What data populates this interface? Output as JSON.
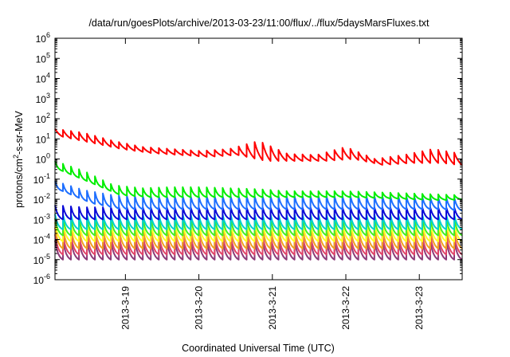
{
  "chart_data": {
    "type": "line",
    "title": "/data/run/goesPlots/archive/2013-03-23/11:00/flux/../flux/5daysMarsFluxes.txt",
    "xlabel": "Coordinated Universal Time (UTC)",
    "ylabel": {
      "base": "protons/cm",
      "sup": "2",
      "rest": "-s-sr-MeV"
    },
    "y_scale": "log",
    "ylim_exponents": [
      -6,
      6
    ],
    "xlim_days": [
      "2013-3-18 01:00",
      "2013-3-23 14:00"
    ],
    "x_ticks": [
      "2013-3-19",
      "2013-3-20",
      "2013-3-21",
      "2013-3-22",
      "2013-3-23"
    ],
    "y_tick_base": "10",
    "y_tick_exponents": [
      "-6",
      "-5",
      "-4",
      "-3",
      "-2",
      "-1",
      "0",
      "1",
      "2",
      "3",
      "4",
      "5",
      "6"
    ],
    "grid": false,
    "legend": "none",
    "series": [
      {
        "color": "#ff0000",
        "peak_log": [
          1.5,
          1.3,
          0.9,
          0.6,
          0.5,
          0.4,
          0.5,
          0.9,
          0.25,
          0.2,
          0.6,
          0.0,
          0.2,
          0.5,
          0.25
        ],
        "trough_log": [
          1.1,
          0.8,
          0.5,
          0.3,
          0.2,
          0.1,
          0.2,
          -0.1,
          -0.1,
          -0.1,
          0.0,
          -0.3,
          -0.2,
          -0.2,
          -0.35
        ],
        "decay": 0.5
      },
      {
        "color": "#00ee00",
        "peak_log": [
          -0.1,
          -0.6,
          -1.3,
          -1.45,
          -1.4,
          -1.4,
          -1.45,
          -1.5,
          -1.6,
          -1.6,
          -1.6,
          -1.65,
          -1.7,
          -1.75,
          -1.8
        ],
        "trough_log": [
          -0.6,
          -1.2,
          -1.8,
          -1.9,
          -1.9,
          -1.9,
          -1.9,
          -1.9,
          -1.9,
          -1.9,
          -1.9,
          -1.95,
          -2.0,
          -2.05,
          -2.0
        ],
        "decay": 0.9
      },
      {
        "color": "#1e6fff",
        "peak_log": [
          -1.1,
          -1.55,
          -1.8,
          -1.85,
          -1.85,
          -1.85,
          -1.85,
          -1.85,
          -1.85,
          -1.85,
          -1.85,
          -1.85,
          -1.85,
          -1.9,
          -1.9
        ],
        "trough_log": [
          -1.6,
          -2.2,
          -2.5,
          -2.5,
          -2.5,
          -2.5,
          -2.5,
          -2.5,
          -2.5,
          -2.5,
          -2.5,
          -2.5,
          -2.5,
          -2.5,
          -2.6
        ],
        "decay": 0.9
      },
      {
        "color": "#0a0ad8",
        "peak_log": [
          -2.3,
          -2.4,
          -2.4,
          -2.4,
          -2.4,
          -2.4,
          -2.4,
          -2.4,
          -2.4,
          -2.4,
          -2.4,
          -2.4,
          -2.4,
          -2.4,
          -2.4
        ],
        "trough_log": [
          -3.0,
          -3.0,
          -3.0,
          -3.0,
          -3.0,
          -3.0,
          -3.0,
          -3.0,
          -3.0,
          -3.0,
          -3.0,
          -3.0,
          -3.0,
          -3.0,
          -3.0
        ],
        "decay": 0.9
      },
      {
        "color": "#00d0d0",
        "peak_log": [
          -2.75,
          -2.75,
          -2.75,
          -2.75,
          -2.75,
          -2.75,
          -2.75,
          -2.75,
          -2.75,
          -2.75,
          -2.75,
          -2.75,
          -2.75,
          -2.75,
          -2.75
        ],
        "trough_log": [
          -3.5,
          -3.5,
          -3.5,
          -3.5,
          -3.5,
          -3.5,
          -3.5,
          -3.5,
          -3.5,
          -3.5,
          -3.5,
          -3.5,
          -3.5,
          -3.5,
          -3.5
        ],
        "decay": 0.9
      },
      {
        "color": "#44ee22",
        "peak_log": [
          -2.95,
          -2.95,
          -2.95,
          -2.95,
          -2.95,
          -2.95,
          -2.95,
          -2.95,
          -2.95,
          -2.95,
          -2.95,
          -2.95,
          -2.95,
          -2.95,
          -2.95
        ],
        "trough_log": [
          -3.8,
          -3.8,
          -3.8,
          -3.8,
          -3.8,
          -3.8,
          -3.8,
          -3.8,
          -3.8,
          -3.8,
          -3.8,
          -3.8,
          -3.8,
          -3.8,
          -3.8
        ],
        "decay": 0.9
      },
      {
        "color": "#ffff22",
        "peak_log": [
          -3.15,
          -3.15,
          -3.15,
          -3.15,
          -3.15,
          -3.15,
          -3.15,
          -3.15,
          -3.15,
          -3.15,
          -3.15,
          -3.15,
          -3.15,
          -3.15,
          -3.15
        ],
        "trough_log": [
          -4.1,
          -4.1,
          -4.1,
          -4.1,
          -4.1,
          -4.1,
          -4.1,
          -4.1,
          -4.1,
          -4.1,
          -4.1,
          -4.1,
          -4.1,
          -4.1,
          -4.1
        ],
        "decay": 0.9
      },
      {
        "color": "#f0a020",
        "peak_log": [
          -3.4,
          -3.4,
          -3.4,
          -3.4,
          -3.4,
          -3.4,
          -3.4,
          -3.4,
          -3.4,
          -3.4,
          -3.4,
          -3.4,
          -3.4,
          -3.4,
          -3.4
        ],
        "trough_log": [
          -4.45,
          -4.45,
          -4.45,
          -4.45,
          -4.45,
          -4.45,
          -4.45,
          -4.45,
          -4.45,
          -4.45,
          -4.45,
          -4.45,
          -4.45,
          -4.45,
          -4.45
        ],
        "decay": 0.9
      },
      {
        "color": "#e04468",
        "peak_log": [
          -3.75,
          -3.75,
          -3.75,
          -3.75,
          -3.75,
          -3.75,
          -3.75,
          -3.75,
          -3.75,
          -3.75,
          -3.75,
          -3.75,
          -3.75,
          -3.75,
          -3.75
        ],
        "trough_log": [
          -4.75,
          -4.75,
          -4.75,
          -4.75,
          -4.75,
          -4.75,
          -4.75,
          -4.75,
          -4.75,
          -4.75,
          -4.75,
          -4.75,
          -4.75,
          -4.75,
          -4.75
        ],
        "decay": 0.9
      },
      {
        "color": "#8c3a78",
        "peak_log": [
          -4.05,
          -4.05,
          -4.05,
          -4.05,
          -4.05,
          -4.05,
          -4.05,
          -4.05,
          -4.05,
          -4.05,
          -4.05,
          -4.05,
          -4.05,
          -4.05,
          -4.05
        ],
        "trough_log": [
          -5.0,
          -5.0,
          -5.0,
          -5.0,
          -5.0,
          -5.0,
          -5.0,
          -5.0,
          -5.0,
          -5.0,
          -5.0,
          -5.0,
          -5.0,
          -5.0,
          -5.0
        ],
        "decay": 0.9
      }
    ],
    "cycles_per_day": 9.2
  }
}
